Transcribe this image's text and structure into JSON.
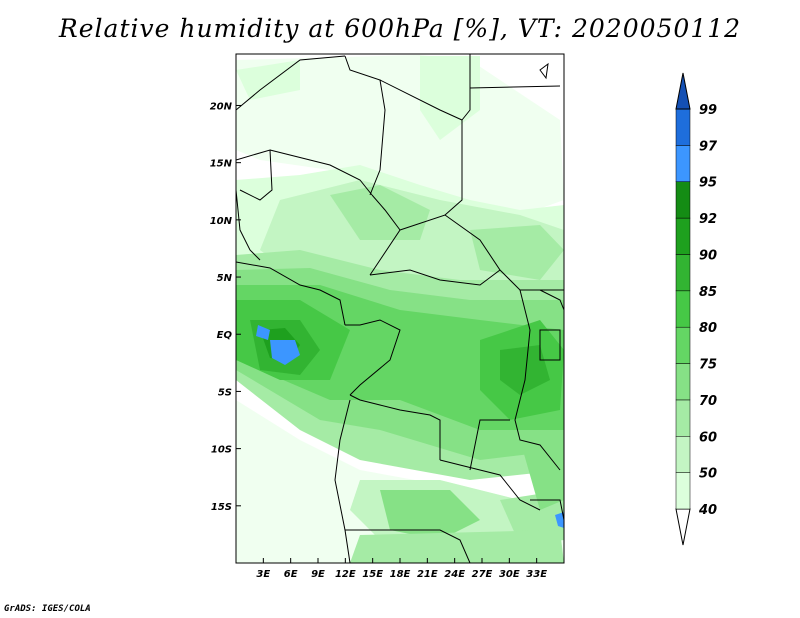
{
  "title": "Relative humidity at 600hPa [%], VT: 2020050112",
  "credit": "GrADS: IGES/COLA",
  "map": {
    "lon_range": [
      0,
      36
    ],
    "lat_range": [
      -20,
      24.5
    ],
    "lon_ticks": [
      "3E",
      "6E",
      "9E",
      "12E",
      "15E",
      "18E",
      "21E",
      "24E",
      "27E",
      "30E",
      "33E"
    ],
    "lon_tick_values": [
      3,
      6,
      9,
      12,
      15,
      18,
      21,
      24,
      27,
      30,
      33
    ],
    "lat_ticks": [
      "20N",
      "15N",
      "10N",
      "5N",
      "EQ",
      "5S",
      "10S",
      "15S"
    ],
    "lat_tick_values": [
      20,
      15,
      10,
      5,
      0,
      -5,
      -10,
      -15
    ]
  },
  "colorbar": {
    "levels": [
      "40",
      "50",
      "60",
      "70",
      "75",
      "80",
      "85",
      "90",
      "92",
      "95",
      "97",
      "99"
    ],
    "colors": [
      "#f0fff0",
      "#dcffdc",
      "#c3f5c3",
      "#a5eba5",
      "#86e186",
      "#64d664",
      "#46c846",
      "#32b432",
      "#1ea01e",
      "#148c14",
      "#3c96ff",
      "#1e6edc",
      "#1450b4"
    ]
  },
  "chart_data": {
    "type": "heatmap",
    "title": "Relative humidity at 600hPa [%], VT: 2020050112",
    "variable_levels": [
      40,
      50,
      60,
      70,
      75,
      80,
      85,
      90,
      92,
      95,
      97,
      99
    ],
    "x_range_deg_lon": [
      0,
      36
    ],
    "y_range_deg_lat": [
      -20,
      24.5
    ]
  }
}
